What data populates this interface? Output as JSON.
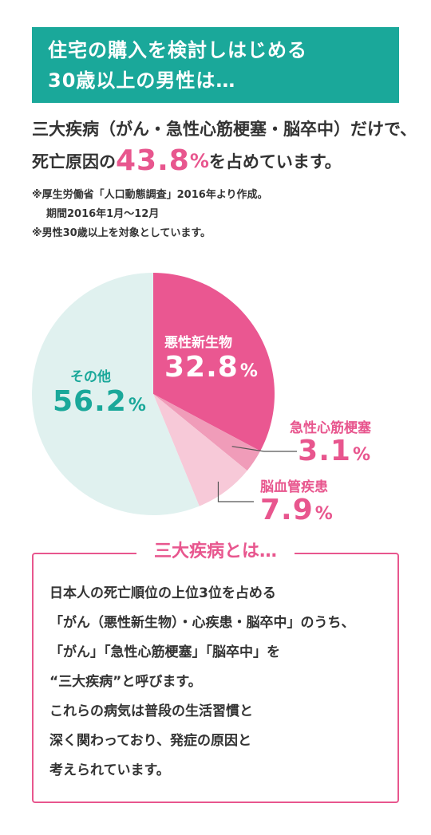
{
  "header": {
    "line1": "住宅の購入を検討しはじめる",
    "line2": "30歳以上の男性は…"
  },
  "lead": {
    "line1": "三大疾病（がん・急性心筋梗塞・脳卒中）だけで、",
    "line2_prefix": "死亡原因の",
    "line2_value": "43.8",
    "line2_unit": "%",
    "line2_suffix": "を占めています。"
  },
  "notes": {
    "line1": "※厚生労働省「人口動態調査」2016年より作成。",
    "line2": "期間2016年1月～12月",
    "line3": "※男性30歳以上を対象としています。"
  },
  "colors": {
    "accent_teal": "#1aa89a",
    "accent_pink": "#e8568e",
    "cancer": "#ea5791",
    "heart": "#f09cb9",
    "stroke": "#f7c9d8",
    "other": "#e0f1ef"
  },
  "chart_data": {
    "type": "pie",
    "slices": [
      {
        "name": "悪性新生物",
        "value": 32.8,
        "unit": "%",
        "color": "#ea5791"
      },
      {
        "name": "急性心筋梗塞",
        "value": 3.1,
        "unit": "%",
        "color": "#f09cb9"
      },
      {
        "name": "脳血管疾患",
        "value": 7.9,
        "unit": "%",
        "color": "#f7c9d8"
      },
      {
        "name": "その他",
        "value": 56.2,
        "unit": "%",
        "color": "#e0f1ef"
      }
    ]
  },
  "box": {
    "title": "三大疾病とは…",
    "lines": [
      "日本人の死亡順位の上位3位を占める",
      "「がん（悪性新生物）・心疾患・脳卒中」のうち、",
      "「がん」「急性心筋梗塞」「脳卒中」を",
      "“三大疾病”と呼びます。",
      "これらの病気は普段の生活習慣と",
      "深く関わっており、発症の原因と",
      "考えられています。"
    ]
  }
}
